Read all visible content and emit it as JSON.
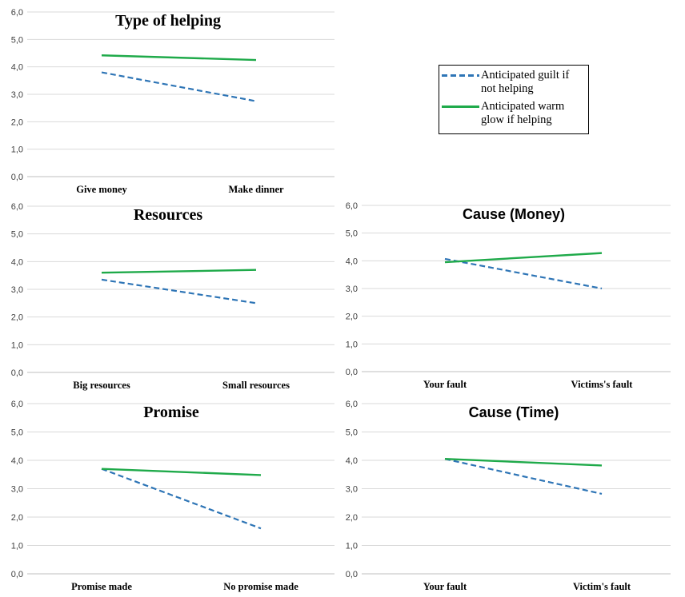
{
  "colors": {
    "guilt": "#2e75b6",
    "warm_glow": "#1faa4a"
  },
  "legend": {
    "guilt_label": "Anticipated guilt if not helping",
    "warm_label": "Anticipated warm glow if helping"
  },
  "chart_data": [
    {
      "id": "type",
      "type": "line",
      "title": "Type of helping",
      "categories": [
        "Give money",
        "Make dinner"
      ],
      "ylim": [
        0,
        6
      ],
      "yticks": [
        "0,0",
        "1,0",
        "2,0",
        "3,0",
        "4,0",
        "5,0",
        "6,0"
      ],
      "series": [
        {
          "name": "Anticipated guilt if not helping",
          "style": "dashed",
          "values": [
            3.8,
            2.75
          ]
        },
        {
          "name": "Anticipated warm glow if helping",
          "style": "solid",
          "values": [
            4.42,
            4.25
          ]
        }
      ]
    },
    {
      "id": "resources",
      "type": "line",
      "title": "Resources",
      "categories": [
        "Big resources",
        "Small resources"
      ],
      "ylim": [
        0,
        6
      ],
      "yticks": [
        "0,0",
        "1,0",
        "2,0",
        "3,0",
        "4,0",
        "5,0",
        "6,0"
      ],
      "series": [
        {
          "name": "Anticipated guilt if not helping",
          "style": "dashed",
          "values": [
            3.35,
            2.5
          ]
        },
        {
          "name": "Anticipated warm glow if helping",
          "style": "solid",
          "values": [
            3.6,
            3.7
          ]
        }
      ]
    },
    {
      "id": "cause_money",
      "type": "line",
      "title": "Cause (Money)",
      "categories": [
        "Your fault",
        "Victims's fault"
      ],
      "ylim": [
        0,
        6
      ],
      "yticks": [
        "0,0",
        "1,0",
        "2,0",
        "3,0",
        "4,0",
        "5,0",
        "6,0"
      ],
      "series": [
        {
          "name": "Anticipated guilt if not helping",
          "style": "dashed",
          "values": [
            4.07,
            3.0
          ]
        },
        {
          "name": "Anticipated warm glow if helping",
          "style": "solid",
          "values": [
            3.95,
            4.28
          ]
        }
      ]
    },
    {
      "id": "promise",
      "type": "line",
      "title": "Promise",
      "categories": [
        "Promise made",
        "No promise made"
      ],
      "ylim": [
        0,
        6
      ],
      "yticks": [
        "0,0",
        "1,0",
        "2,0",
        "3,0",
        "4,0",
        "5,0",
        "6,0"
      ],
      "series": [
        {
          "name": "Anticipated guilt if not helping",
          "style": "dashed",
          "values": [
            3.7,
            1.6
          ]
        },
        {
          "name": "Anticipated warm glow if helping",
          "style": "solid",
          "values": [
            3.7,
            3.48
          ]
        }
      ]
    },
    {
      "id": "cause_time",
      "type": "line",
      "title": "Cause (Time)",
      "categories": [
        "Your fault",
        "Victim's fault"
      ],
      "ylim": [
        0,
        6
      ],
      "yticks": [
        "0,0",
        "1,0",
        "2,0",
        "3,0",
        "4,0",
        "5,0",
        "6,0"
      ],
      "series": [
        {
          "name": "Anticipated guilt if not helping",
          "style": "dashed",
          "values": [
            4.05,
            2.82
          ]
        },
        {
          "name": "Anticipated warm glow if helping",
          "style": "solid",
          "values": [
            4.05,
            3.82
          ]
        }
      ]
    }
  ]
}
